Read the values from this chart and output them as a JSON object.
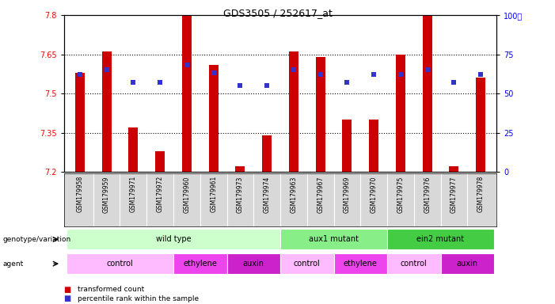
{
  "title": "GDS3505 / 252617_at",
  "samples": [
    "GSM179958",
    "GSM179959",
    "GSM179971",
    "GSM179972",
    "GSM179960",
    "GSM179961",
    "GSM179973",
    "GSM179974",
    "GSM179963",
    "GSM179967",
    "GSM179969",
    "GSM179970",
    "GSM179975",
    "GSM179976",
    "GSM179977",
    "GSM179978"
  ],
  "bar_values": [
    7.58,
    7.66,
    7.37,
    7.28,
    7.8,
    7.61,
    7.22,
    7.34,
    7.66,
    7.64,
    7.4,
    7.4,
    7.65,
    7.8,
    7.22,
    7.56
  ],
  "percentile_values": [
    62,
    65,
    57,
    57,
    68,
    63,
    55,
    55,
    65,
    62,
    57,
    62,
    62,
    65,
    57,
    62
  ],
  "ylim": [
    7.2,
    7.8
  ],
  "yticks": [
    7.2,
    7.35,
    7.5,
    7.65,
    7.8
  ],
  "right_yticks": [
    0,
    25,
    50,
    75,
    100
  ],
  "bar_color": "#cc0000",
  "dot_color": "#3333cc",
  "genotype_groups": [
    {
      "label": "wild type",
      "start": 0,
      "end": 8,
      "color": "#ccffcc"
    },
    {
      "label": "aux1 mutant",
      "start": 8,
      "end": 12,
      "color": "#88ee88"
    },
    {
      "label": "ein2 mutant",
      "start": 12,
      "end": 16,
      "color": "#44cc44"
    }
  ],
  "agent_groups": [
    {
      "label": "control",
      "start": 0,
      "end": 4,
      "color": "#ffbbff"
    },
    {
      "label": "ethylene",
      "start": 4,
      "end": 6,
      "color": "#ee44ee"
    },
    {
      "label": "auxin",
      "start": 6,
      "end": 8,
      "color": "#cc22cc"
    },
    {
      "label": "control",
      "start": 8,
      "end": 10,
      "color": "#ffbbff"
    },
    {
      "label": "ethylene",
      "start": 10,
      "end": 12,
      "color": "#ee44ee"
    },
    {
      "label": "control",
      "start": 12,
      "end": 14,
      "color": "#ffbbff"
    },
    {
      "label": "auxin",
      "start": 14,
      "end": 16,
      "color": "#cc22cc"
    }
  ],
  "legend_items": [
    {
      "label": "transformed count",
      "color": "#cc0000"
    },
    {
      "label": "percentile rank within the sample",
      "color": "#3333cc"
    }
  ]
}
